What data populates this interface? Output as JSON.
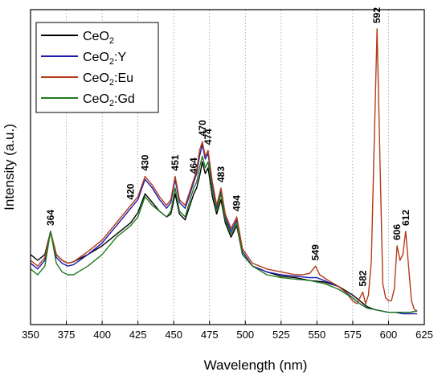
{
  "chart_data": {
    "type": "line",
    "xlabel": "Wavelength (nm)",
    "ylabel": "Intensity (a.u.)",
    "xlim": [
      350,
      625
    ],
    "ylim": [
      0,
      100
    ],
    "x_ticks": [
      "350",
      "375",
      "400",
      "425",
      "450",
      "475",
      "500",
      "525",
      "550",
      "575",
      "600",
      "625"
    ],
    "grid": "vertical-dotted",
    "legend_position": "top-left",
    "series": [
      {
        "name": "CeO",
        "sub": "2",
        "suffix": "",
        "color": "#000000",
        "points": [
          [
            350,
            22
          ],
          [
            355,
            20
          ],
          [
            360,
            22
          ],
          [
            364,
            30
          ],
          [
            368,
            22
          ],
          [
            372,
            20
          ],
          [
            376,
            19
          ],
          [
            380,
            19.5
          ],
          [
            390,
            22
          ],
          [
            400,
            25
          ],
          [
            410,
            29
          ],
          [
            420,
            33
          ],
          [
            425,
            36.5
          ],
          [
            430,
            43
          ],
          [
            435,
            40
          ],
          [
            440,
            37
          ],
          [
            445,
            35
          ],
          [
            448,
            36
          ],
          [
            451,
            43
          ],
          [
            454,
            36
          ],
          [
            458,
            34
          ],
          [
            462,
            40
          ],
          [
            464,
            43
          ],
          [
            466,
            45
          ],
          [
            468,
            49
          ],
          [
            470,
            54
          ],
          [
            472,
            50
          ],
          [
            474,
            52
          ],
          [
            477,
            42
          ],
          [
            480,
            36
          ],
          [
            483,
            41
          ],
          [
            486,
            33
          ],
          [
            490,
            28
          ],
          [
            494,
            32
          ],
          [
            498,
            22
          ],
          [
            505,
            18
          ],
          [
            515,
            16
          ],
          [
            525,
            14.5
          ],
          [
            535,
            14
          ],
          [
            545,
            13
          ],
          [
            555,
            12.5
          ],
          [
            565,
            11
          ],
          [
            575,
            8
          ],
          [
            580,
            6
          ],
          [
            585,
            4
          ],
          [
            590,
            3
          ],
          [
            595,
            2.5
          ],
          [
            600,
            2
          ],
          [
            605,
            2
          ],
          [
            610,
            2
          ],
          [
            615,
            2
          ],
          [
            620,
            2.5
          ]
        ]
      },
      {
        "name": "CeO",
        "sub": "2",
        "suffix": ":Y",
        "color": "#1d1ab0",
        "points": [
          [
            350,
            19
          ],
          [
            355,
            17
          ],
          [
            360,
            20
          ],
          [
            364,
            30
          ],
          [
            368,
            21
          ],
          [
            372,
            19
          ],
          [
            376,
            18
          ],
          [
            380,
            18.5
          ],
          [
            390,
            22
          ],
          [
            400,
            26
          ],
          [
            410,
            32
          ],
          [
            420,
            38
          ],
          [
            425,
            41
          ],
          [
            430,
            48
          ],
          [
            435,
            45
          ],
          [
            440,
            41
          ],
          [
            445,
            38
          ],
          [
            448,
            40
          ],
          [
            451,
            48
          ],
          [
            454,
            40
          ],
          [
            458,
            38
          ],
          [
            462,
            44
          ],
          [
            464,
            47
          ],
          [
            466,
            50
          ],
          [
            468,
            56
          ],
          [
            470,
            60
          ],
          [
            472,
            55
          ],
          [
            474,
            57
          ],
          [
            477,
            46
          ],
          [
            480,
            38
          ],
          [
            483,
            44
          ],
          [
            486,
            35
          ],
          [
            490,
            30
          ],
          [
            494,
            34
          ],
          [
            498,
            23
          ],
          [
            505,
            18
          ],
          [
            515,
            16
          ],
          [
            525,
            15
          ],
          [
            535,
            14.5
          ],
          [
            545,
            14
          ],
          [
            550,
            14
          ],
          [
            555,
            13
          ],
          [
            565,
            11
          ],
          [
            575,
            7
          ],
          [
            580,
            5
          ],
          [
            585,
            3.5
          ],
          [
            590,
            3
          ],
          [
            595,
            2.5
          ],
          [
            600,
            2
          ],
          [
            605,
            2
          ],
          [
            610,
            1.5
          ],
          [
            615,
            1.5
          ],
          [
            620,
            1.5
          ]
        ]
      },
      {
        "name": "CeO",
        "sub": "2",
        "suffix": ":Eu",
        "color": "#b43a1a",
        "points": [
          [
            350,
            20
          ],
          [
            355,
            18
          ],
          [
            360,
            21
          ],
          [
            364,
            30
          ],
          [
            368,
            22
          ],
          [
            372,
            20
          ],
          [
            376,
            19
          ],
          [
            380,
            19.5
          ],
          [
            390,
            23
          ],
          [
            400,
            27
          ],
          [
            410,
            33
          ],
          [
            420,
            39
          ],
          [
            425,
            42
          ],
          [
            430,
            49
          ],
          [
            435,
            46
          ],
          [
            440,
            42
          ],
          [
            445,
            39
          ],
          [
            448,
            41
          ],
          [
            451,
            49
          ],
          [
            454,
            41
          ],
          [
            458,
            39
          ],
          [
            462,
            45
          ],
          [
            464,
            48
          ],
          [
            466,
            51
          ],
          [
            468,
            58
          ],
          [
            470,
            61
          ],
          [
            472,
            56
          ],
          [
            474,
            58
          ],
          [
            477,
            47
          ],
          [
            480,
            39
          ],
          [
            483,
            45
          ],
          [
            486,
            36
          ],
          [
            490,
            31
          ],
          [
            494,
            35
          ],
          [
            498,
            24
          ],
          [
            505,
            19
          ],
          [
            515,
            17
          ],
          [
            525,
            16
          ],
          [
            535,
            15
          ],
          [
            540,
            15
          ],
          [
            545,
            15.5
          ],
          [
            549,
            18
          ],
          [
            552,
            15
          ],
          [
            558,
            13
          ],
          [
            565,
            11
          ],
          [
            570,
            9
          ],
          [
            575,
            6
          ],
          [
            578,
            5
          ],
          [
            580,
            7
          ],
          [
            582,
            9
          ],
          [
            584,
            5
          ],
          [
            586,
            8
          ],
          [
            588,
            20
          ],
          [
            590,
            60
          ],
          [
            592,
            100
          ],
          [
            594,
            55
          ],
          [
            596,
            12
          ],
          [
            598,
            7
          ],
          [
            600,
            6
          ],
          [
            602,
            6
          ],
          [
            604,
            10
          ],
          [
            606,
            25
          ],
          [
            608,
            20
          ],
          [
            610,
            22
          ],
          [
            612,
            30
          ],
          [
            614,
            18
          ],
          [
            616,
            6
          ],
          [
            618,
            3
          ],
          [
            620,
            2.5
          ]
        ]
      },
      {
        "name": "CeO",
        "sub": "2",
        "suffix": ":Gd",
        "color": "#1f7a1f",
        "points": [
          [
            350,
            17
          ],
          [
            355,
            15
          ],
          [
            360,
            18
          ],
          [
            364,
            30
          ],
          [
            368,
            19
          ],
          [
            372,
            16
          ],
          [
            376,
            15
          ],
          [
            380,
            15
          ],
          [
            390,
            18
          ],
          [
            400,
            22
          ],
          [
            410,
            28
          ],
          [
            420,
            32
          ],
          [
            425,
            35
          ],
          [
            430,
            42
          ],
          [
            435,
            39
          ],
          [
            440,
            37
          ],
          [
            445,
            35
          ],
          [
            448,
            37
          ],
          [
            451,
            45
          ],
          [
            454,
            37
          ],
          [
            458,
            35
          ],
          [
            462,
            42
          ],
          [
            464,
            45
          ],
          [
            466,
            47
          ],
          [
            468,
            52
          ],
          [
            470,
            56
          ],
          [
            472,
            52
          ],
          [
            474,
            54
          ],
          [
            477,
            44
          ],
          [
            480,
            37
          ],
          [
            483,
            43
          ],
          [
            486,
            34
          ],
          [
            490,
            29
          ],
          [
            494,
            33
          ],
          [
            498,
            22
          ],
          [
            505,
            18
          ],
          [
            515,
            15
          ],
          [
            525,
            14
          ],
          [
            535,
            13.5
          ],
          [
            545,
            13
          ],
          [
            555,
            12
          ],
          [
            565,
            10
          ],
          [
            575,
            7
          ],
          [
            580,
            5
          ],
          [
            585,
            3.5
          ],
          [
            590,
            3
          ],
          [
            595,
            2.5
          ],
          [
            600,
            2
          ],
          [
            605,
            2
          ],
          [
            610,
            2
          ],
          [
            615,
            2
          ],
          [
            620,
            2.5
          ]
        ]
      }
    ],
    "peak_labels": [
      {
        "text": "364",
        "x": 364,
        "y": 30
      },
      {
        "text": "420",
        "x": 420,
        "y": 39
      },
      {
        "text": "430",
        "x": 430,
        "y": 49
      },
      {
        "text": "451",
        "x": 451,
        "y": 49
      },
      {
        "text": "464",
        "x": 464,
        "y": 48
      },
      {
        "text": "470",
        "x": 470,
        "y": 61
      },
      {
        "text": "474",
        "x": 474,
        "y": 58
      },
      {
        "text": "483",
        "x": 483,
        "y": 45
      },
      {
        "text": "494",
        "x": 494,
        "y": 35
      },
      {
        "text": "549",
        "x": 549,
        "y": 18
      },
      {
        "text": "582",
        "x": 582,
        "y": 9
      },
      {
        "text": "592",
        "x": 592,
        "y": 100
      },
      {
        "text": "606",
        "x": 606,
        "y": 25
      },
      {
        "text": "612",
        "x": 612,
        "y": 30
      }
    ]
  }
}
